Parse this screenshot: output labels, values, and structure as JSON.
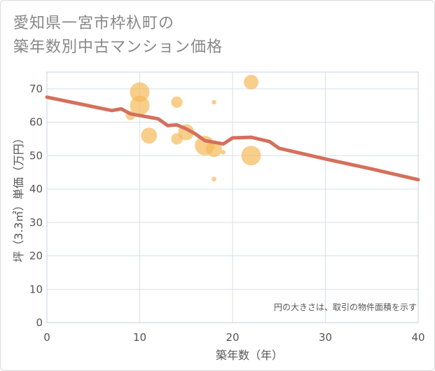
{
  "chart_data": {
    "type": "scatter",
    "title": "愛知県一宮市枠杁町の\n築年数別中古マンション価格",
    "xlabel": "築年数（年）",
    "ylabel": "坪（3.3㎡）単価（万円）",
    "note": "円の大きさは、取引の物件面積を示す",
    "xlim": [
      0,
      40
    ],
    "ylim": [
      0,
      75
    ],
    "xticks": [
      "0",
      "10",
      "20",
      "30",
      "40"
    ],
    "yticks": [
      "0",
      "10",
      "20",
      "30",
      "40",
      "50",
      "60",
      "70"
    ],
    "grid": true,
    "colors": {
      "bubble": "#f5b95a",
      "line": "#d4705c",
      "grid": "#d6e0ea"
    },
    "series": [
      {
        "kind": "bubbles",
        "points": [
          {
            "x": 9,
            "y": 62,
            "size": 2
          },
          {
            "x": 10,
            "y": 69,
            "size": 9
          },
          {
            "x": 10,
            "y": 65,
            "size": 9
          },
          {
            "x": 11,
            "y": 56,
            "size": 6
          },
          {
            "x": 14,
            "y": 66,
            "size": 3
          },
          {
            "x": 14,
            "y": 55,
            "size": 3
          },
          {
            "x": 15,
            "y": 57,
            "size": 6
          },
          {
            "x": 17,
            "y": 53,
            "size": 9
          },
          {
            "x": 18,
            "y": 52,
            "size": 6
          },
          {
            "x": 18,
            "y": 66,
            "size": 0.5
          },
          {
            "x": 18,
            "y": 43,
            "size": 0.5
          },
          {
            "x": 19,
            "y": 51,
            "size": 0.5
          },
          {
            "x": 22,
            "y": 72,
            "size": 5
          },
          {
            "x": 22,
            "y": 50,
            "size": 9
          }
        ]
      },
      {
        "kind": "trend",
        "x": [
          0,
          7,
          8,
          9,
          10,
          11,
          12,
          13,
          14,
          15,
          16,
          17,
          18,
          19,
          20,
          22,
          24,
          25,
          30,
          35,
          40
        ],
        "y": [
          67.5,
          63.5,
          64,
          62.5,
          62,
          61.5,
          61,
          59,
          59.2,
          58,
          56.5,
          54.5,
          54,
          53.5,
          55.3,
          55.5,
          54.2,
          52.2,
          49,
          46,
          42.8
        ]
      }
    ]
  }
}
